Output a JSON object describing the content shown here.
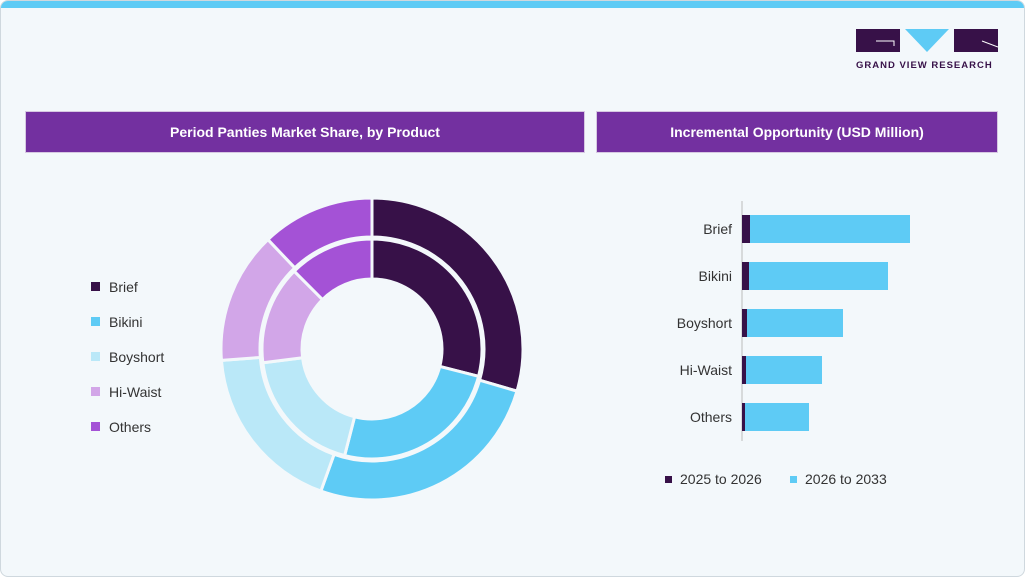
{
  "brand": {
    "name": "GRAND VIEW RESEARCH"
  },
  "colors": {
    "brief": "#371148",
    "bikini": "#5ecbf5",
    "boyshort": "#bae8f8",
    "hi_waist": "#d2a6e8",
    "others": "#a452d6",
    "header": "#7330a0",
    "accent": "#5ecbf5"
  },
  "chart_data": [
    {
      "type": "pie",
      "title": "Period Panties Market Share, by Product",
      "categories": [
        "Brief",
        "Bikini",
        "Boyshort",
        "Hi-Waist",
        "Others"
      ],
      "legend": "left",
      "rings": [
        {
          "values": [
            29,
            25,
            19,
            14.5,
            12.5
          ]
        },
        {
          "values": [
            29.5,
            26,
            18.3,
            14.1,
            12.1
          ]
        }
      ]
    },
    {
      "type": "bar",
      "orientation": "horizontal",
      "stacked": true,
      "title": "Incremental Opportunity (USD Million)",
      "categories": [
        "Brief",
        "Bikini",
        "Boyshort",
        "Hi-Waist",
        "Others"
      ],
      "series": [
        {
          "name": "2025 to 2026",
          "values": [
            8,
            7,
            5,
            4,
            3
          ]
        },
        {
          "name": "2026 to 2033",
          "values": [
            160,
            139,
            96,
            76,
            64
          ]
        }
      ],
      "legend": "bottom",
      "grid": false
    }
  ]
}
